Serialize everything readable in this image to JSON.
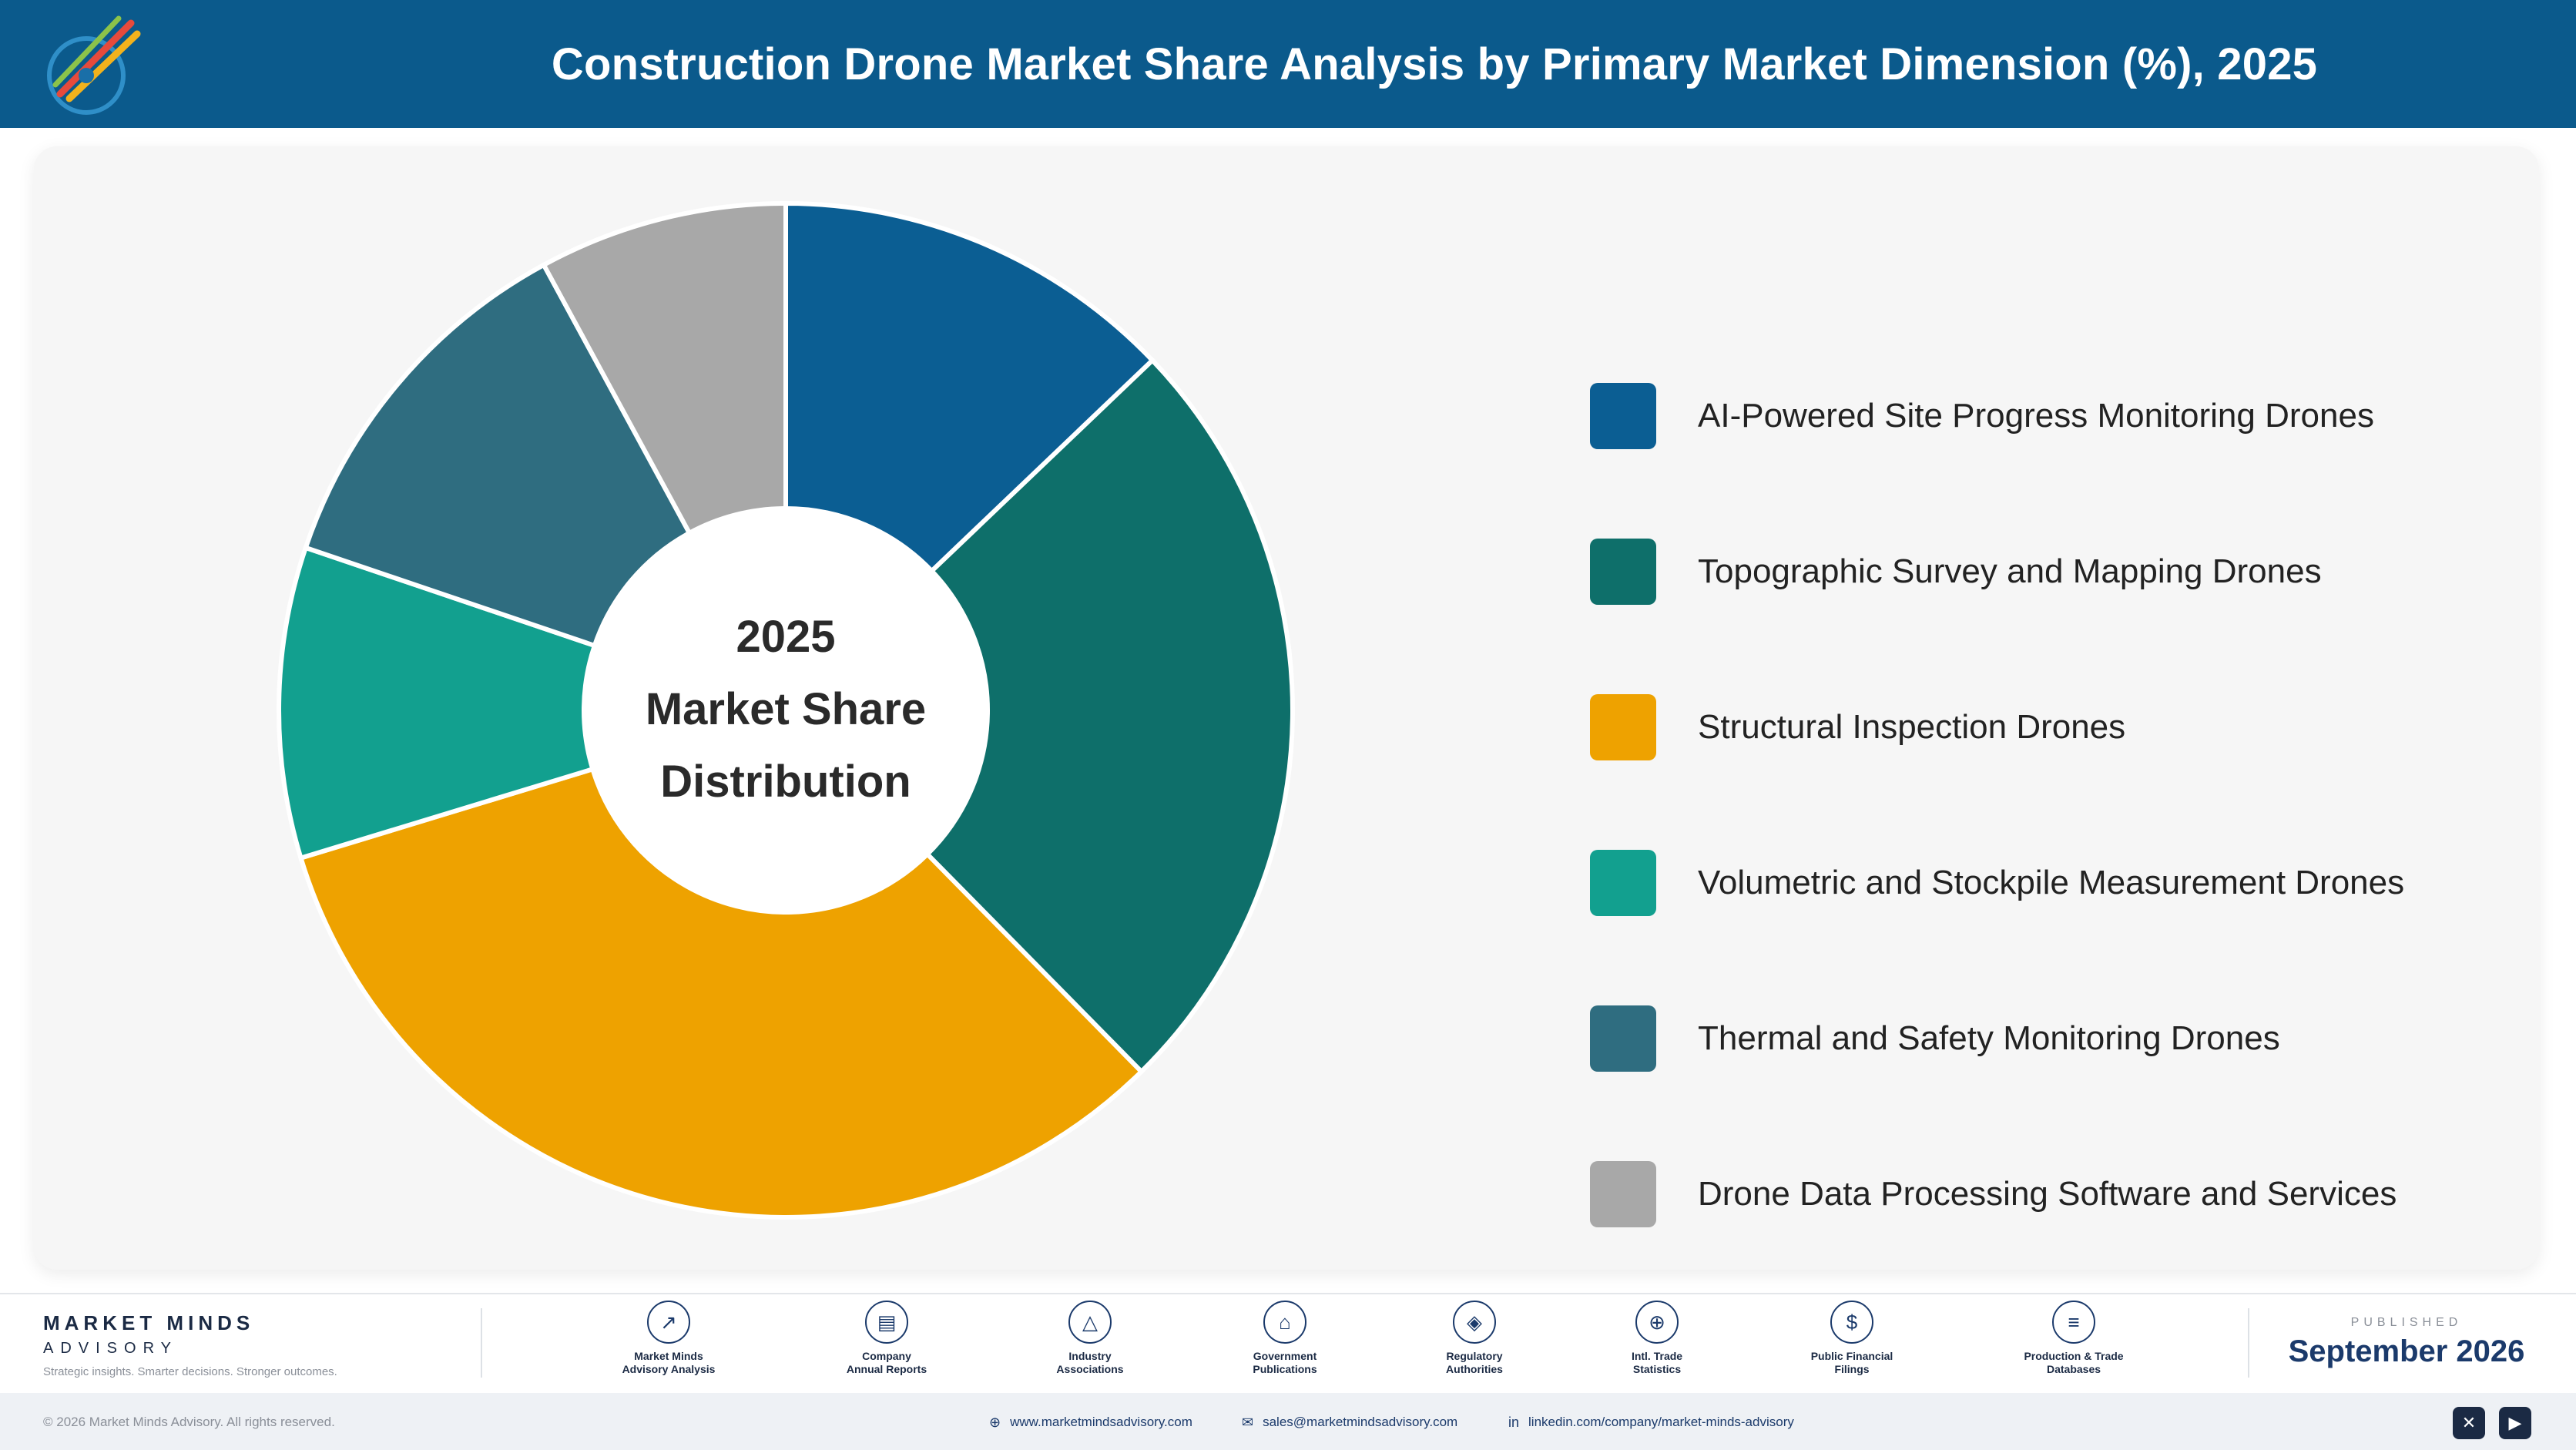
{
  "header": {
    "title": "Construction Drone Market Share Analysis by Primary Market Dimension (%), 2025"
  },
  "chart_data": {
    "type": "pie",
    "subtype": "donut",
    "center_text": [
      "2025",
      "Market Share",
      "Distribution"
    ],
    "categories": [
      "AI-Powered Site Progress Monitoring Drones",
      "Topographic Survey and Mapping Drones",
      "Structural Inspection Drones",
      "Volumetric and Stockpile Measurement Drones",
      "Thermal and Safety Monitoring Drones",
      "Drone Data Processing Software and Services"
    ],
    "values": [
      13,
      25,
      33,
      10,
      12,
      8
    ],
    "colors": [
      "#0b5e93",
      "#0e6f6a",
      "#eea200",
      "#12a08f",
      "#2f6d80",
      "#a8a8a8"
    ],
    "legend_position": "right"
  },
  "footer": {
    "brand_name": "MARKET MINDS",
    "brand_sub": "ADVISORY",
    "brand_tagline": "Strategic insights. Smarter decisions. Stronger outcomes.",
    "sources": [
      {
        "icon": "chart-line-icon",
        "glyph": "↗",
        "line1": "Market Minds",
        "line2": "Advisory Analysis"
      },
      {
        "icon": "document-icon",
        "glyph": "▤",
        "line1": "Company",
        "line2": "Annual Reports"
      },
      {
        "icon": "network-icon",
        "glyph": "△",
        "line1": "Industry",
        "line2": "Associations"
      },
      {
        "icon": "government-building-icon",
        "glyph": "⌂",
        "line1": "Government",
        "line2": "Publications"
      },
      {
        "icon": "shield-icon",
        "glyph": "◈",
        "line1": "Regulatory",
        "line2": "Authorities"
      },
      {
        "icon": "globe-icon",
        "glyph": "⊕",
        "line1": "Intl. Trade",
        "line2": "Statistics"
      },
      {
        "icon": "dollar-coin-icon",
        "glyph": "$",
        "line1": "Public Financial",
        "line2": "Filings"
      },
      {
        "icon": "database-icon",
        "glyph": "≡",
        "line1": "Production & Trade",
        "line2": "Databases"
      }
    ],
    "published_label": "PUBLISHED",
    "published_date": "September 2026",
    "copyright": "© 2026 Market Minds Advisory. All rights reserved.",
    "website": "www.marketmindsadvisory.com",
    "email": "sales@marketmindsadvisory.com",
    "linkedin": "linkedin.com/company/market-minds-advisory",
    "social": [
      {
        "icon": "x-twitter-icon",
        "glyph": "✕"
      },
      {
        "icon": "youtube-icon",
        "glyph": "▶"
      }
    ]
  }
}
